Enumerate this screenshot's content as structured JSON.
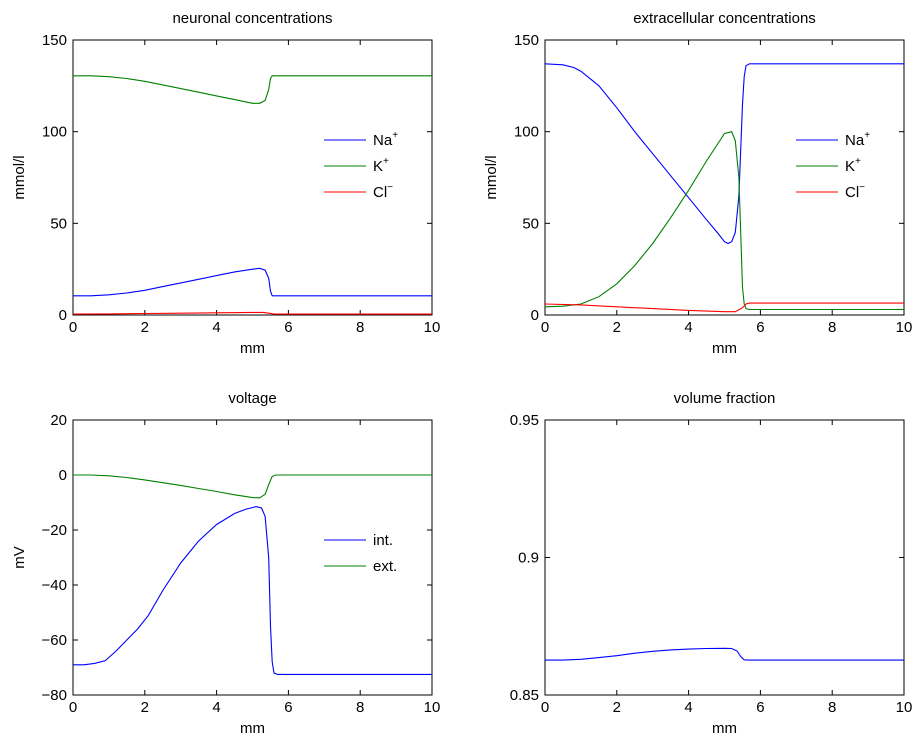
{
  "chart_data": [
    {
      "id": "neuronal",
      "type": "line",
      "title": "neuronal concentrations",
      "xlabel": "mm",
      "ylabel": "mmol/l",
      "xlim": [
        0,
        10
      ],
      "ylim": [
        0,
        150
      ],
      "xticks": [
        "0",
        "2",
        "4",
        "6",
        "8",
        "10"
      ],
      "yticks": [
        "0",
        "50",
        "100",
        "150"
      ],
      "legend_position": "right",
      "series": [
        {
          "name": "Na",
          "sup": "+",
          "color": "#0000ff",
          "x": [
            0,
            0.5,
            1,
            1.5,
            2,
            2.5,
            3,
            3.5,
            4,
            4.5,
            5,
            5.2,
            5.35,
            5.45,
            5.5,
            5.55,
            6,
            7,
            8,
            9,
            10
          ],
          "y": [
            10.5,
            10.5,
            11,
            12,
            13.5,
            15.5,
            17.5,
            19.5,
            21.5,
            23.5,
            25,
            25.5,
            24.5,
            20,
            13,
            10.5,
            10.5,
            10.5,
            10.5,
            10.5,
            10.5
          ]
        },
        {
          "name": "K",
          "sup": "+",
          "color": "#008000",
          "x": [
            0,
            0.5,
            1,
            1.5,
            2,
            2.5,
            3,
            3.5,
            4,
            4.5,
            5,
            5.2,
            5.35,
            5.45,
            5.5,
            5.55,
            6,
            7,
            8,
            9,
            10
          ],
          "y": [
            130.5,
            130.5,
            130,
            129,
            127.5,
            125.5,
            123.5,
            121.5,
            119.5,
            117.5,
            115.5,
            115.5,
            117,
            123,
            129,
            130.5,
            130.5,
            130.5,
            130.5,
            130.5,
            130.5
          ]
        },
        {
          "name": "Cl",
          "sup": "−",
          "color": "#ff0000",
          "x": [
            0,
            1,
            2,
            3,
            4,
            5,
            5.3,
            5.5,
            5.6,
            6,
            7,
            8,
            9,
            10
          ],
          "y": [
            0.5,
            0.6,
            0.8,
            1.0,
            1.2,
            1.4,
            1.4,
            0.9,
            0.5,
            0.5,
            0.5,
            0.5,
            0.5,
            0.5
          ]
        }
      ]
    },
    {
      "id": "extracellular",
      "type": "line",
      "title": "extracellular concentrations",
      "xlabel": "mm",
      "ylabel": "mmol/l",
      "xlim": [
        0,
        10
      ],
      "ylim": [
        0,
        150
      ],
      "xticks": [
        "0",
        "2",
        "4",
        "6",
        "8",
        "10"
      ],
      "yticks": [
        "0",
        "50",
        "100",
        "150"
      ],
      "legend_position": "right",
      "series": [
        {
          "name": "Na",
          "sup": "+",
          "color": "#0000ff",
          "x": [
            0,
            0.5,
            0.8,
            1,
            1.5,
            2,
            2.5,
            3,
            3.5,
            4,
            4.5,
            4.8,
            5,
            5.1,
            5.2,
            5.3,
            5.4,
            5.45,
            5.5,
            5.55,
            5.6,
            5.7,
            6,
            7,
            8,
            9,
            10
          ],
          "y": [
            137,
            136.5,
            135,
            133,
            125,
            113,
            100,
            88,
            76,
            64,
            52,
            45,
            40,
            39,
            40,
            45,
            65,
            90,
            115,
            130,
            136,
            137,
            137,
            137,
            137,
            137,
            137
          ]
        },
        {
          "name": "K",
          "sup": "+",
          "color": "#008000",
          "x": [
            0,
            0.5,
            1,
            1.5,
            2,
            2.5,
            3,
            3.5,
            4,
            4.5,
            4.8,
            5,
            5.2,
            5.3,
            5.4,
            5.45,
            5.5,
            5.55,
            5.6,
            5.7,
            6,
            7,
            8,
            9,
            10
          ],
          "y": [
            4.5,
            4.8,
            6,
            10,
            17,
            27,
            39,
            53,
            68,
            84,
            93,
            99,
            100,
            95,
            75,
            45,
            15,
            6,
            3.5,
            3,
            3,
            3,
            3,
            3,
            3
          ]
        },
        {
          "name": "Cl",
          "sup": "−",
          "color": "#ff0000",
          "x": [
            0,
            1,
            2,
            3,
            4,
            5,
            5.3,
            5.5,
            5.6,
            5.7,
            6,
            7,
            8,
            9,
            10
          ],
          "y": [
            6,
            5.5,
            4.5,
            3.5,
            2.5,
            1.8,
            1.8,
            4,
            6,
            6.5,
            6.5,
            6.5,
            6.5,
            6.5,
            6.5
          ]
        }
      ]
    },
    {
      "id": "voltage",
      "type": "line",
      "title": "voltage",
      "xlabel": "mm",
      "ylabel": "mV",
      "xlim": [
        0,
        10
      ],
      "ylim": [
        -80,
        20
      ],
      "xticks": [
        "0",
        "2",
        "4",
        "6",
        "8",
        "10"
      ],
      "yticks": [
        "−80",
        "−60",
        "−40",
        "−20",
        "0",
        "20"
      ],
      "ytick_values": [
        -80,
        -60,
        -40,
        -20,
        0,
        20
      ],
      "legend_position": "right",
      "series": [
        {
          "name": "int.",
          "color": "#0000ff",
          "x": [
            0,
            0.3,
            0.6,
            0.9,
            1.2,
            1.5,
            1.8,
            2.1,
            2.5,
            3,
            3.5,
            4,
            4.5,
            4.8,
            5.1,
            5.25,
            5.35,
            5.45,
            5.5,
            5.55,
            5.6,
            5.7,
            6,
            7,
            8,
            9,
            10
          ],
          "y": [
            -69,
            -69,
            -68.5,
            -67.5,
            -64,
            -60,
            -56,
            -51,
            -42,
            -32,
            -24,
            -18,
            -14,
            -12.5,
            -11.5,
            -12,
            -15,
            -30,
            -55,
            -68,
            -72,
            -72.5,
            -72.5,
            -72.5,
            -72.5,
            -72.5,
            -72.5
          ]
        },
        {
          "name": "ext.",
          "color": "#008000",
          "x": [
            0,
            0.5,
            1,
            1.5,
            2,
            2.5,
            3,
            3.5,
            4,
            4.5,
            5,
            5.2,
            5.35,
            5.45,
            5.55,
            5.65,
            6,
            7,
            8,
            9,
            10
          ],
          "y": [
            0,
            0,
            -0.3,
            -0.9,
            -1.8,
            -2.8,
            -3.8,
            -4.9,
            -6,
            -7.2,
            -8.2,
            -8.3,
            -7,
            -3.5,
            -0.5,
            0,
            0,
            0,
            0,
            0,
            0
          ]
        }
      ]
    },
    {
      "id": "volume",
      "type": "line",
      "title": "volume fraction",
      "xlabel": "mm",
      "ylabel": "",
      "xlim": [
        0,
        10
      ],
      "ylim": [
        0.85,
        0.95
      ],
      "xticks": [
        "0",
        "2",
        "4",
        "6",
        "8",
        "10"
      ],
      "yticks": [
        "0.85",
        "0.9",
        "0.95"
      ],
      "ytick_values": [
        0.85,
        0.9,
        0.95
      ],
      "legend_position": "none",
      "series": [
        {
          "color": "#0000ff",
          "x": [
            0,
            0.5,
            1,
            1.5,
            2,
            2.5,
            3,
            3.5,
            4,
            4.5,
            5,
            5.2,
            5.35,
            5.45,
            5.55,
            5.65,
            6,
            7,
            8,
            9,
            10
          ],
          "y": [
            0.8627,
            0.8627,
            0.863,
            0.8636,
            0.8643,
            0.8652,
            0.8659,
            0.8664,
            0.8667,
            0.8669,
            0.867,
            0.8669,
            0.866,
            0.864,
            0.8628,
            0.8627,
            0.8627,
            0.8627,
            0.8627,
            0.8627,
            0.8627
          ]
        }
      ]
    }
  ]
}
